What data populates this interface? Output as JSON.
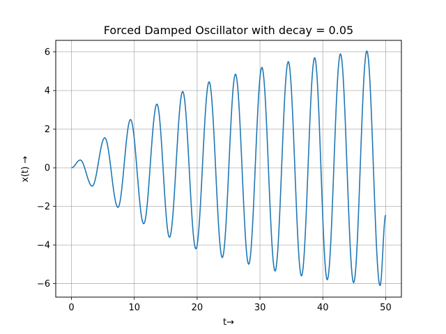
{
  "chart_data": {
    "type": "line",
    "title": "Forced Damped Oscillator with decay = 0.05",
    "xlabel": "t→",
    "ylabel": "x(t) →",
    "xlim": [
      -2.5,
      52.5
    ],
    "ylim": [
      -6.7,
      6.6
    ],
    "xticks": [
      0,
      10,
      20,
      30,
      40,
      50
    ],
    "yticks": [
      -6,
      -4,
      -2,
      0,
      2,
      4,
      6
    ],
    "xtick_labels": [
      "0",
      "10",
      "20",
      "30",
      "40",
      "50"
    ],
    "ytick_labels": [
      "−6",
      "−4",
      "−2",
      "0",
      "2",
      "4",
      "6"
    ],
    "grid": true,
    "series_color": "#1f77b4",
    "series": [
      {
        "x": [
          0,
          1.4,
          3.3,
          5.3,
          7.4,
          9.4,
          11.5,
          13.6,
          15.6,
          17.7,
          19.8,
          21.9,
          24.0,
          26.1,
          28.2,
          30.3,
          32.4,
          34.5,
          36.6,
          38.7,
          40.7,
          42.8,
          44.9,
          47.0,
          49.1,
          50.0
        ],
        "y": [
          0,
          0.4,
          -0.95,
          1.55,
          -2.05,
          2.5,
          -2.9,
          3.3,
          -3.6,
          3.95,
          -4.2,
          4.45,
          -4.65,
          4.85,
          -5.0,
          5.2,
          -5.35,
          5.5,
          -5.6,
          5.7,
          -5.8,
          5.9,
          -5.95,
          6.05,
          -6.1,
          -2.45
        ]
      }
    ]
  }
}
